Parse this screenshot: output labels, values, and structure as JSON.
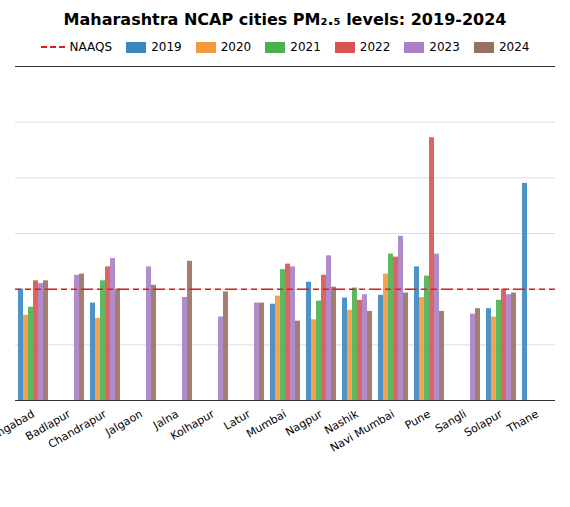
{
  "chart_data": {
    "type": "bar",
    "title": "Maharashtra NCAP cities PM₂.₅ levels: 2019-2024",
    "categories": [
      "Aurangabad",
      "Badlapur",
      "Chandrapur",
      "Jalgaon",
      "Jalna",
      "Kolhapur",
      "Latur",
      "Mumbai",
      "Nagpur",
      "Nashik",
      "Navi Mumbai",
      "Pune",
      "Sangli",
      "Solapur",
      "Thane"
    ],
    "series": [
      {
        "name": "2019",
        "color": "#3a87c0",
        "values": [
          40,
          null,
          35,
          null,
          null,
          null,
          null,
          34.6,
          42.5,
          36.8,
          37.8,
          48,
          null,
          33,
          78
        ]
      },
      {
        "name": "2020",
        "color": "#f5993e",
        "values": [
          30.6,
          null,
          29.5,
          null,
          null,
          null,
          null,
          37.5,
          29,
          32.4,
          45.4,
          37,
          null,
          30,
          null
        ]
      },
      {
        "name": "2021",
        "color": "#4caf50",
        "values": [
          33.5,
          null,
          43,
          null,
          null,
          null,
          null,
          47,
          35.7,
          40.4,
          52.6,
          44.7,
          null,
          36,
          null
        ]
      },
      {
        "name": "2022",
        "color": "#d9534f",
        "values": [
          43,
          null,
          48,
          null,
          null,
          null,
          null,
          49,
          45,
          36,
          51.5,
          94.4,
          null,
          40,
          null
        ]
      },
      {
        "name": "2023",
        "color": "#a880c8",
        "values": [
          42,
          45,
          51,
          48,
          37,
          30,
          35,
          48,
          52,
          38,
          59,
          52.6,
          31,
          38,
          null
        ]
      },
      {
        "name": "2024",
        "color": "#9c6f64",
        "values": [
          43,
          45.4,
          40,
          41.4,
          50,
          39,
          35,
          28.5,
          40.7,
          32,
          38.6,
          32,
          33,
          38.6,
          null
        ]
      }
    ],
    "reference": {
      "name": "NAAQS",
      "value": 40,
      "color": "#e41a1c"
    },
    "ylim": [
      0,
      120
    ],
    "yticks": [
      0,
      20,
      40,
      60,
      80,
      100,
      120
    ],
    "grid": true,
    "legend": "top",
    "tick_labels": "x"
  }
}
